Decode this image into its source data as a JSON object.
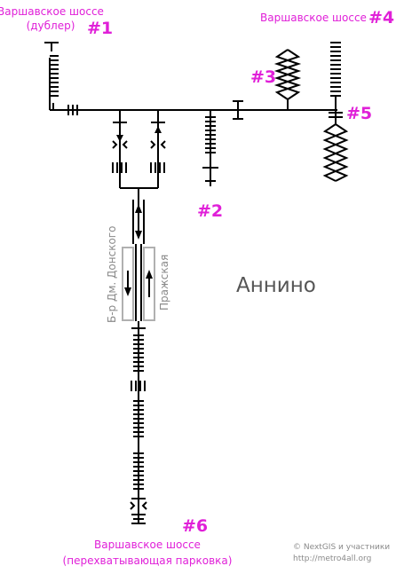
{
  "station": {
    "name": "Аннино"
  },
  "exits": {
    "e1": {
      "line1": "Варшавское шоссе",
      "line2": "(дублер)",
      "number": "#1"
    },
    "e2": {
      "number": "#2"
    },
    "e3": {
      "number": "#3"
    },
    "e4": {
      "line1": "Варшавское шоссе",
      "number": "#4"
    },
    "e5": {
      "number": "#5"
    },
    "e6": {
      "line1": "Варшавское шоссе",
      "line2": "(перехватывающая парковка)",
      "number": "#6"
    }
  },
  "platforms": {
    "left": "Б-р Дм. Донского",
    "right": "Пражская"
  },
  "credits": {
    "line1": "© NextGIS и участники",
    "line2": "http://metro4all.org"
  }
}
